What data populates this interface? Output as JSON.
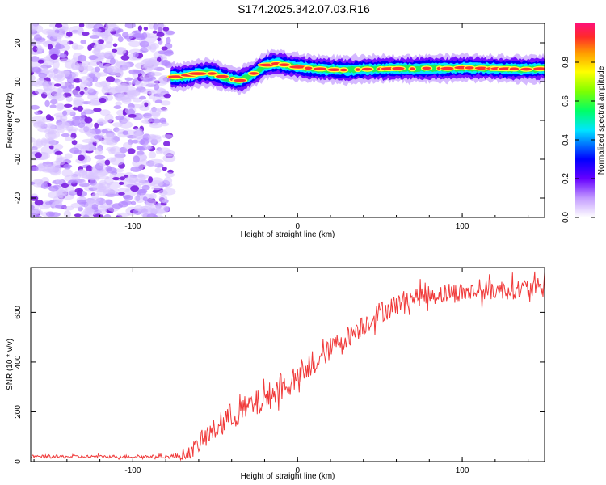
{
  "title": "S174.2025.342.07.03.R16",
  "colors": {
    "snr_line": "#f03a3a",
    "noise": "#8a2be2",
    "axis": "#000000",
    "background": "#ffffff"
  },
  "chart_data": [
    {
      "type": "heatmap",
      "title": "S174.2025.342.07.03.R16",
      "xlabel": "Height of straight line (km)",
      "ylabel": "Frequency (Hz)",
      "xlim": [
        -162,
        150
      ],
      "ylim": [
        -25,
        25
      ],
      "x_ticks": [
        -100,
        0,
        100
      ],
      "y_ticks": [
        -20,
        -10,
        0,
        10,
        20
      ],
      "noise_region_x": [
        -162,
        -77
      ],
      "signal_start_x": -77,
      "ridge": {
        "x": [
          -77,
          -70,
          -65,
          -60,
          -55,
          -50,
          -45,
          -40,
          -35,
          -30,
          -25,
          -20,
          -15,
          -10,
          -5,
          0,
          5,
          10,
          20,
          30,
          40,
          50,
          60,
          70,
          80,
          90,
          100,
          110,
          120,
          130,
          140,
          150
        ],
        "freq": [
          11.2,
          11.3,
          11.7,
          12.1,
          12.4,
          11.9,
          11.2,
          10.6,
          10.3,
          11.2,
          12.5,
          14,
          14.7,
          14.5,
          14.1,
          13.8,
          13.5,
          13.4,
          13.1,
          13,
          13.2,
          13.3,
          13.4,
          13.3,
          13.5,
          13.4,
          13.6,
          13.5,
          13.4,
          13.3,
          13.2,
          13.4
        ]
      },
      "colorbar": {
        "label": "Normalized spectral amplitude",
        "range": [
          0,
          1
        ],
        "ticks": [
          0.0,
          0.2,
          0.4,
          0.6,
          0.8
        ]
      }
    },
    {
      "type": "line",
      "xlabel": "Height of straight line (km)",
      "ylabel": "SNR (10 * v/v)",
      "xlim": [
        -162,
        150
      ],
      "ylim": [
        0,
        780
      ],
      "x_ticks": [
        -100,
        0,
        100
      ],
      "y_ticks": [
        0,
        200,
        400,
        600
      ],
      "series": [
        {
          "name": "SNR",
          "x": [
            -162,
            -140,
            -120,
            -100,
            -80,
            -70,
            -65,
            -60,
            -55,
            -50,
            -45,
            -40,
            -35,
            -30,
            -25,
            -20,
            -15,
            -10,
            -5,
            0,
            5,
            10,
            15,
            20,
            25,
            30,
            35,
            40,
            45,
            50,
            55,
            60,
            65,
            70,
            75,
            80,
            90,
            100,
            110,
            120,
            130,
            140,
            150
          ],
          "mean": [
            20,
            20,
            20,
            20,
            20,
            22,
            40,
            70,
            100,
            130,
            160,
            185,
            200,
            215,
            230,
            250,
            275,
            295,
            315,
            330,
            355,
            385,
            420,
            455,
            480,
            500,
            525,
            550,
            575,
            600,
            615,
            630,
            650,
            660,
            665,
            670,
            675,
            680,
            685,
            690,
            692,
            695,
            700
          ],
          "noise": [
            8,
            8,
            8,
            8,
            8,
            20,
            35,
            45,
            55,
            60,
            65,
            70,
            70,
            70,
            70,
            70,
            70,
            65,
            60,
            55,
            55,
            55,
            55,
            55,
            55,
            55,
            55,
            55,
            55,
            55,
            55,
            55,
            50,
            50,
            50,
            50,
            50,
            50,
            50,
            50,
            50,
            50,
            50
          ]
        }
      ]
    }
  ]
}
